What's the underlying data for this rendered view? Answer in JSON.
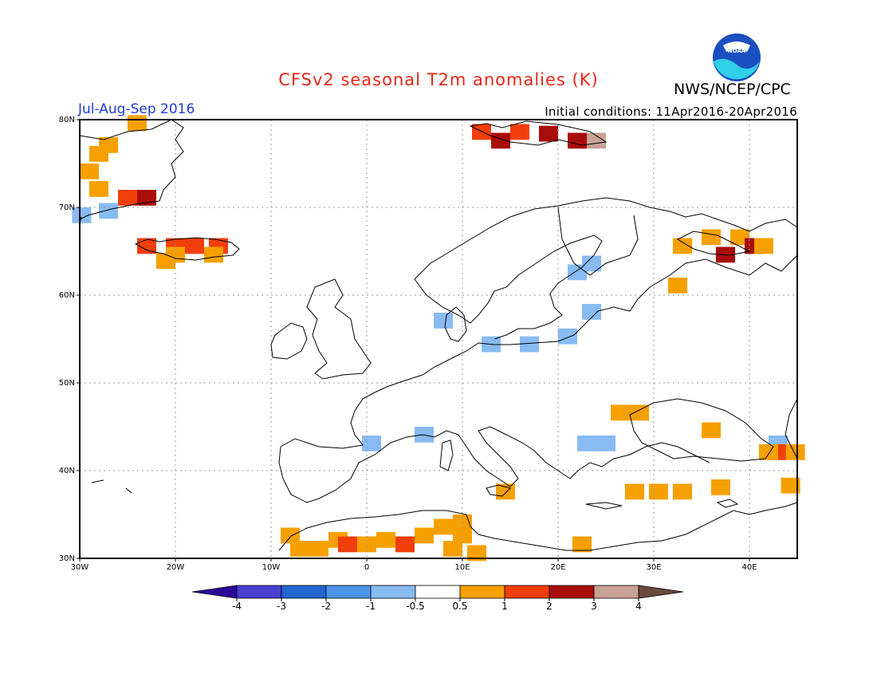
{
  "header": {
    "title": "CFSv2 seasonal T2m anomalies (K)",
    "agency": "NWS/NCEP/CPC",
    "period": "Jul-Aug-Sep 2016",
    "initial_conditions": "Initial conditions: 11Apr2016-20Apr2016",
    "logo_text": "NOAA"
  },
  "colors": {
    "title": "#e8261a",
    "period": "#1f3bd8",
    "grid": "#9a9a9a",
    "coast": "#000000",
    "anomaly_lt_-4": "#2a0a9a",
    "anomaly_-4_-3": "#4b3fd0",
    "anomaly_-3_-2": "#2166d1",
    "anomaly_-2_-1": "#4b96ea",
    "anomaly_-1_-0.5": "#88bbf2",
    "anomaly_0.5_1": "#f6a000",
    "anomaly_1_2": "#f13e0a",
    "anomaly_2_3": "#a80d0a",
    "anomaly_3_4": "#c9a295",
    "anomaly_gt_4": "#6b4a3e"
  },
  "map": {
    "lon_range": [
      -30,
      45
    ],
    "lat_range": [
      30,
      80
    ],
    "lon_ticks": [
      "30W",
      "20W",
      "10W",
      "0",
      "10E",
      "20E",
      "30E",
      "40E"
    ],
    "lat_ticks": [
      "30N",
      "40N",
      "50N",
      "60N",
      "70N",
      "80N"
    ]
  },
  "colorbar": {
    "labels": [
      "-4",
      "-3",
      "-2",
      "-1",
      "-0.5",
      "0.5",
      "1",
      "2",
      "3",
      "4"
    ]
  },
  "anomaly_cells": [
    {
      "lon": -28,
      "lat": 76,
      "class": "0.5_1"
    },
    {
      "lon": -27,
      "lat": 77,
      "class": "0.5_1"
    },
    {
      "lon": -29,
      "lat": 74,
      "class": "0.5_1"
    },
    {
      "lon": -28,
      "lat": 72,
      "class": "0.5_1"
    },
    {
      "lon": -25,
      "lat": 71,
      "class": "1_2"
    },
    {
      "lon": -23,
      "lat": 71,
      "class": "2_3"
    },
    {
      "lon": -27,
      "lat": 69.5,
      "class": "-1_-0.5"
    },
    {
      "lon": -29.8,
      "lat": 69,
      "class": "-1_-0.5"
    },
    {
      "lon": -24,
      "lat": 79.5,
      "class": "0.5_1"
    },
    {
      "lon": -23,
      "lat": 65.5,
      "class": "1_2"
    },
    {
      "lon": -20,
      "lat": 65.5,
      "class": "1_2"
    },
    {
      "lon": -18,
      "lat": 65.5,
      "class": "1_2"
    },
    {
      "lon": -15.5,
      "lat": 65.5,
      "class": "1_2"
    },
    {
      "lon": -20,
      "lat": 64.5,
      "class": "0.5_1"
    },
    {
      "lon": -16,
      "lat": 64.5,
      "class": "0.5_1"
    },
    {
      "lon": -21,
      "lat": 63.8,
      "class": "0.5_1"
    },
    {
      "lon": 12,
      "lat": 78.5,
      "class": "1_2"
    },
    {
      "lon": 16,
      "lat": 78.5,
      "class": "1_2"
    },
    {
      "lon": 19,
      "lat": 78.3,
      "class": "2_3"
    },
    {
      "lon": 22,
      "lat": 77.5,
      "class": "2_3"
    },
    {
      "lon": 24,
      "lat": 77.5,
      "class": "3_4"
    },
    {
      "lon": 14,
      "lat": 77.5,
      "class": "2_3"
    },
    {
      "lon": 33,
      "lat": 65.5,
      "class": "0.5_1"
    },
    {
      "lon": 36,
      "lat": 66.5,
      "class": "0.5_1"
    },
    {
      "lon": 39,
      "lat": 66.5,
      "class": "0.5_1"
    },
    {
      "lon": 37.5,
      "lat": 64.5,
      "class": "2_3"
    },
    {
      "lon": 40.5,
      "lat": 65.5,
      "class": "2_3"
    },
    {
      "lon": 41.5,
      "lat": 65.5,
      "class": "0.5_1"
    },
    {
      "lon": 32.5,
      "lat": 61,
      "class": "0.5_1"
    },
    {
      "lon": 22,
      "lat": 62.5,
      "class": "-1_-0.5"
    },
    {
      "lon": 23.5,
      "lat": 63.5,
      "class": "-1_-0.5"
    },
    {
      "lon": 23.5,
      "lat": 58,
      "class": "-1_-0.5"
    },
    {
      "lon": 8,
      "lat": 57,
      "class": "-1_-0.5"
    },
    {
      "lon": 13,
      "lat": 54.3,
      "class": "-1_-0.5"
    },
    {
      "lon": 17,
      "lat": 54.3,
      "class": "-1_-0.5"
    },
    {
      "lon": 21,
      "lat": 55.2,
      "class": "-1_-0.5"
    },
    {
      "lon": 26.5,
      "lat": 46.5,
      "class": "0.5_1"
    },
    {
      "lon": 28.5,
      "lat": 46.5,
      "class": "0.5_1"
    },
    {
      "lon": 36,
      "lat": 44.5,
      "class": "0.5_1"
    },
    {
      "lon": 23,
      "lat": 43,
      "class": "-1_-0.5"
    },
    {
      "lon": 25,
      "lat": 43,
      "class": "-1_-0.5"
    },
    {
      "lon": 0.5,
      "lat": 43,
      "class": "-1_-0.5"
    },
    {
      "lon": 6,
      "lat": 44,
      "class": "-1_-0.5"
    },
    {
      "lon": 43,
      "lat": 43,
      "class": "-1_-0.5"
    },
    {
      "lon": 43,
      "lat": 42,
      "class": "1_2"
    },
    {
      "lon": 42,
      "lat": 42,
      "class": "0.5_1"
    },
    {
      "lon": 44.8,
      "lat": 42,
      "class": "0.5_1"
    },
    {
      "lon": 14.5,
      "lat": 37.5,
      "class": "0.5_1"
    },
    {
      "lon": 28,
      "lat": 37.5,
      "class": "0.5_1"
    },
    {
      "lon": 30.5,
      "lat": 37.5,
      "class": "0.5_1"
    },
    {
      "lon": 33,
      "lat": 37.5,
      "class": "0.5_1"
    },
    {
      "lon": 37,
      "lat": 38,
      "class": "0.5_1"
    },
    {
      "lon": 44.3,
      "lat": 38.2,
      "class": "0.5_1"
    },
    {
      "lon": -8,
      "lat": 32.5,
      "class": "0.5_1"
    },
    {
      "lon": -7,
      "lat": 31,
      "class": "0.5_1"
    },
    {
      "lon": -5,
      "lat": 31,
      "class": "0.5_1"
    },
    {
      "lon": -3,
      "lat": 32,
      "class": "0.5_1"
    },
    {
      "lon": -2,
      "lat": 31.5,
      "class": "1_2"
    },
    {
      "lon": 0,
      "lat": 31.5,
      "class": "0.5_1"
    },
    {
      "lon": 2,
      "lat": 32,
      "class": "0.5_1"
    },
    {
      "lon": 4,
      "lat": 31.5,
      "class": "0.5_1"
    },
    {
      "lon": 4,
      "lat": 31.5,
      "class": "1_2"
    },
    {
      "lon": 6,
      "lat": 32.5,
      "class": "0.5_1"
    },
    {
      "lon": 8,
      "lat": 33.5,
      "class": "0.5_1"
    },
    {
      "lon": 9,
      "lat": 31,
      "class": "0.5_1"
    },
    {
      "lon": 10,
      "lat": 34,
      "class": "0.5_1"
    },
    {
      "lon": 10,
      "lat": 32.5,
      "class": "0.5_1"
    },
    {
      "lon": 11.5,
      "lat": 30.5,
      "class": "0.5_1"
    },
    {
      "lon": 22.5,
      "lat": 31.5,
      "class": "0.5_1"
    }
  ]
}
